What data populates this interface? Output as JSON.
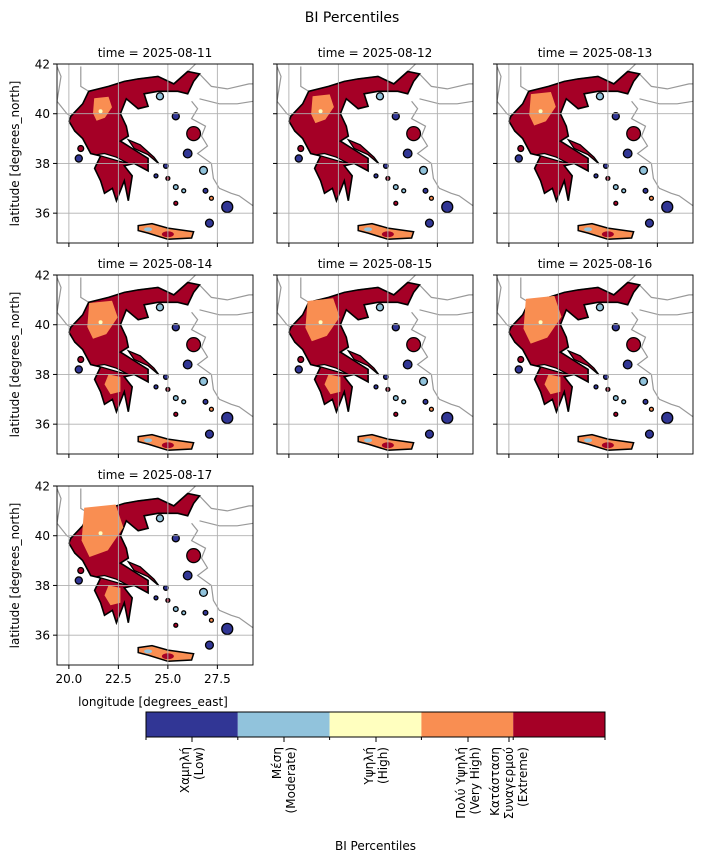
{
  "chart_data": {
    "type": "heatmap",
    "title": "BI Percentiles",
    "xlabel": "longitude [degrees_east]",
    "ylabel": "latitude [degrees_north]",
    "xlim": [
      19.4,
      29.3
    ],
    "ylim": [
      34.8,
      42
    ],
    "xticks": [
      "20.0",
      "22.5",
      "25.0",
      "27.5"
    ],
    "xtick_values": [
      20,
      22.5,
      25,
      27.5
    ],
    "yticks": [
      "36",
      "38",
      "40",
      "42"
    ],
    "ytick_values": [
      36,
      38,
      40,
      42
    ],
    "grid": true,
    "panels": [
      {
        "title": "time = 2025-08-11"
      },
      {
        "title": "time = 2025-08-12"
      },
      {
        "title": "time = 2025-08-13"
      },
      {
        "title": "time = 2025-08-14"
      },
      {
        "title": "time = 2025-08-15"
      },
      {
        "title": "time = 2025-08-16"
      },
      {
        "title": "time = 2025-08-17"
      }
    ],
    "colorbar": {
      "label": "BI Percentiles",
      "categories": [
        {
          "label": "Χαμηλή\n(Low)",
          "color": "#313695"
        },
        {
          "label": "Μέση\n(Moderate)",
          "color": "#91c3dc"
        },
        {
          "label": "Υψηλή\n(High)",
          "color": "#ffffbf"
        },
        {
          "label": "Πολύ Υψηλή\n(Very High)",
          "color": "#f98e52"
        },
        {
          "label": "Κατάσταση\nΣυναγερμού\n(Extreme)",
          "color": "#a50026"
        }
      ]
    }
  }
}
